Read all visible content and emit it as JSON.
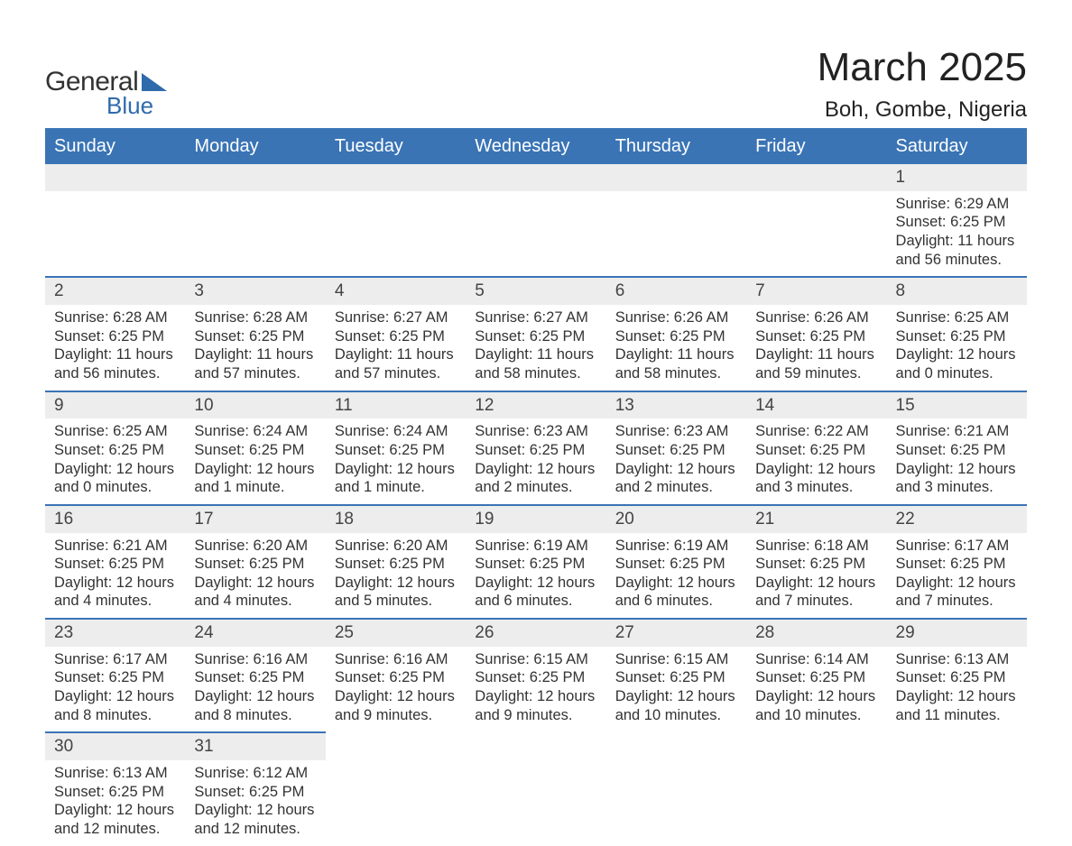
{
  "brand": {
    "word1": "General",
    "word2": "Blue",
    "brand_color": "#2f6aab"
  },
  "title": "March 2025",
  "subtitle": "Boh, Gombe, Nigeria",
  "colors": {
    "header_bg": "#3a74b5",
    "header_text": "#ffffff",
    "row_sep": "#3a74b5",
    "daynum_bg": "#ededed",
    "text": "#333333",
    "background": "#ffffff"
  },
  "typography": {
    "title_fontsize": 44,
    "subtitle_fontsize": 24,
    "header_fontsize": 20,
    "daynum_fontsize": 19,
    "detail_fontsize": 16.5
  },
  "columns": [
    "Sunday",
    "Monday",
    "Tuesday",
    "Wednesday",
    "Thursday",
    "Friday",
    "Saturday"
  ],
  "weeks": [
    [
      null,
      null,
      null,
      null,
      null,
      null,
      {
        "d": "1",
        "sunrise": "6:29 AM",
        "sunset": "6:25 PM",
        "daylight": "11 hours and 56 minutes."
      }
    ],
    [
      {
        "d": "2",
        "sunrise": "6:28 AM",
        "sunset": "6:25 PM",
        "daylight": "11 hours and 56 minutes."
      },
      {
        "d": "3",
        "sunrise": "6:28 AM",
        "sunset": "6:25 PM",
        "daylight": "11 hours and 57 minutes."
      },
      {
        "d": "4",
        "sunrise": "6:27 AM",
        "sunset": "6:25 PM",
        "daylight": "11 hours and 57 minutes."
      },
      {
        "d": "5",
        "sunrise": "6:27 AM",
        "sunset": "6:25 PM",
        "daylight": "11 hours and 58 minutes."
      },
      {
        "d": "6",
        "sunrise": "6:26 AM",
        "sunset": "6:25 PM",
        "daylight": "11 hours and 58 minutes."
      },
      {
        "d": "7",
        "sunrise": "6:26 AM",
        "sunset": "6:25 PM",
        "daylight": "11 hours and 59 minutes."
      },
      {
        "d": "8",
        "sunrise": "6:25 AM",
        "sunset": "6:25 PM",
        "daylight": "12 hours and 0 minutes."
      }
    ],
    [
      {
        "d": "9",
        "sunrise": "6:25 AM",
        "sunset": "6:25 PM",
        "daylight": "12 hours and 0 minutes."
      },
      {
        "d": "10",
        "sunrise": "6:24 AM",
        "sunset": "6:25 PM",
        "daylight": "12 hours and 1 minute."
      },
      {
        "d": "11",
        "sunrise": "6:24 AM",
        "sunset": "6:25 PM",
        "daylight": "12 hours and 1 minute."
      },
      {
        "d": "12",
        "sunrise": "6:23 AM",
        "sunset": "6:25 PM",
        "daylight": "12 hours and 2 minutes."
      },
      {
        "d": "13",
        "sunrise": "6:23 AM",
        "sunset": "6:25 PM",
        "daylight": "12 hours and 2 minutes."
      },
      {
        "d": "14",
        "sunrise": "6:22 AM",
        "sunset": "6:25 PM",
        "daylight": "12 hours and 3 minutes."
      },
      {
        "d": "15",
        "sunrise": "6:21 AM",
        "sunset": "6:25 PM",
        "daylight": "12 hours and 3 minutes."
      }
    ],
    [
      {
        "d": "16",
        "sunrise": "6:21 AM",
        "sunset": "6:25 PM",
        "daylight": "12 hours and 4 minutes."
      },
      {
        "d": "17",
        "sunrise": "6:20 AM",
        "sunset": "6:25 PM",
        "daylight": "12 hours and 4 minutes."
      },
      {
        "d": "18",
        "sunrise": "6:20 AM",
        "sunset": "6:25 PM",
        "daylight": "12 hours and 5 minutes."
      },
      {
        "d": "19",
        "sunrise": "6:19 AM",
        "sunset": "6:25 PM",
        "daylight": "12 hours and 6 minutes."
      },
      {
        "d": "20",
        "sunrise": "6:19 AM",
        "sunset": "6:25 PM",
        "daylight": "12 hours and 6 minutes."
      },
      {
        "d": "21",
        "sunrise": "6:18 AM",
        "sunset": "6:25 PM",
        "daylight": "12 hours and 7 minutes."
      },
      {
        "d": "22",
        "sunrise": "6:17 AM",
        "sunset": "6:25 PM",
        "daylight": "12 hours and 7 minutes."
      }
    ],
    [
      {
        "d": "23",
        "sunrise": "6:17 AM",
        "sunset": "6:25 PM",
        "daylight": "12 hours and 8 minutes."
      },
      {
        "d": "24",
        "sunrise": "6:16 AM",
        "sunset": "6:25 PM",
        "daylight": "12 hours and 8 minutes."
      },
      {
        "d": "25",
        "sunrise": "6:16 AM",
        "sunset": "6:25 PM",
        "daylight": "12 hours and 9 minutes."
      },
      {
        "d": "26",
        "sunrise": "6:15 AM",
        "sunset": "6:25 PM",
        "daylight": "12 hours and 9 minutes."
      },
      {
        "d": "27",
        "sunrise": "6:15 AM",
        "sunset": "6:25 PM",
        "daylight": "12 hours and 10 minutes."
      },
      {
        "d": "28",
        "sunrise": "6:14 AM",
        "sunset": "6:25 PM",
        "daylight": "12 hours and 10 minutes."
      },
      {
        "d": "29",
        "sunrise": "6:13 AM",
        "sunset": "6:25 PM",
        "daylight": "12 hours and 11 minutes."
      }
    ],
    [
      {
        "d": "30",
        "sunrise": "6:13 AM",
        "sunset": "6:25 PM",
        "daylight": "12 hours and 12 minutes."
      },
      {
        "d": "31",
        "sunrise": "6:12 AM",
        "sunset": "6:25 PM",
        "daylight": "12 hours and 12 minutes."
      },
      null,
      null,
      null,
      null,
      null
    ]
  ],
  "labels": {
    "sunrise": "Sunrise: ",
    "sunset": "Sunset: ",
    "daylight": "Daylight: "
  }
}
